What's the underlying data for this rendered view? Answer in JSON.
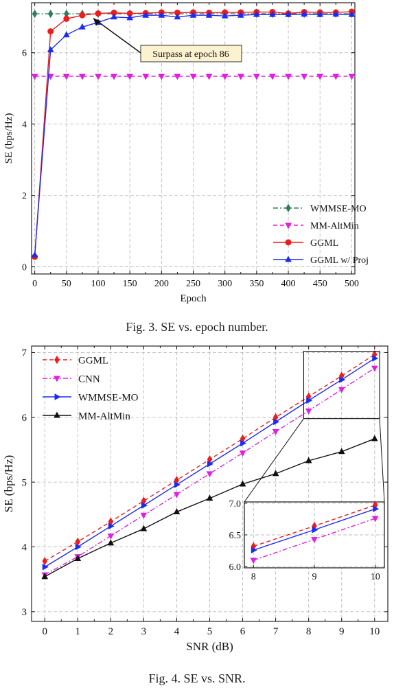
{
  "fig3": {
    "caption": "Fig. 3.  SE vs. epoch number.",
    "annotation": "Surpass at epoch 86"
  },
  "fig4": {
    "caption": "Fig. 4.  SE vs. SNR."
  },
  "chart_data": [
    {
      "type": "line",
      "title": "",
      "xlabel": "Epoch",
      "ylabel": "SE (bps/Hz)",
      "xlim": [
        -5,
        505
      ],
      "ylim": [
        -0.2,
        7.4
      ],
      "xticks": [
        0,
        50,
        100,
        150,
        200,
        250,
        300,
        350,
        400,
        450,
        500
      ],
      "yticks": [
        0,
        2,
        4,
        6
      ],
      "grid": true,
      "legend_position": "bottom-right",
      "annotation": {
        "text": "Surpass at epoch 86",
        "target_x": 86,
        "target_y": 7.08
      },
      "x": [
        0,
        25,
        50,
        75,
        100,
        125,
        150,
        175,
        200,
        225,
        250,
        275,
        300,
        325,
        350,
        375,
        400,
        425,
        450,
        475,
        500
      ],
      "series": [
        {
          "name": "WMMSE-MO",
          "color": "#2e7d5b",
          "marker": "diamond",
          "dash": "dashdot",
          "values": [
            7.09,
            7.09,
            7.09,
            7.09,
            7.09,
            7.09,
            7.09,
            7.09,
            7.09,
            7.09,
            7.09,
            7.09,
            7.09,
            7.09,
            7.09,
            7.09,
            7.09,
            7.09,
            7.09,
            7.09,
            7.09
          ]
        },
        {
          "name": "MM-AltMin",
          "color": "#e020e0",
          "marker": "triangle-down",
          "dash": "dash",
          "values": [
            5.34,
            5.34,
            5.34,
            5.34,
            5.34,
            5.34,
            5.34,
            5.34,
            5.34,
            5.34,
            5.34,
            5.34,
            5.34,
            5.34,
            5.34,
            5.34,
            5.34,
            5.34,
            5.34,
            5.34,
            5.34
          ]
        },
        {
          "name": "GGML",
          "color": "#ee1c1c",
          "marker": "circle",
          "dash": "solid",
          "values": [
            0.28,
            6.6,
            6.95,
            7.05,
            7.1,
            7.12,
            7.1,
            7.11,
            7.13,
            7.12,
            7.13,
            7.12,
            7.13,
            7.13,
            7.14,
            7.14,
            7.1,
            7.14,
            7.13,
            7.13,
            7.15
          ]
        },
        {
          "name": "GGML w/ Proj",
          "color": "#1c2cee",
          "marker": "triangle-up",
          "dash": "solid",
          "values": [
            0.33,
            6.08,
            6.5,
            6.72,
            6.85,
            7.0,
            6.98,
            7.05,
            7.05,
            7.0,
            7.05,
            7.05,
            7.03,
            7.05,
            7.07,
            7.07,
            7.07,
            7.08,
            7.07,
            7.08,
            7.07
          ]
        }
      ]
    },
    {
      "type": "line",
      "title": "",
      "xlabel": "SNR (dB)",
      "ylabel": "SE (bps/Hz)",
      "xlim": [
        -0.4,
        10.4
      ],
      "ylim": [
        2.85,
        7.1
      ],
      "xticks": [
        0,
        1,
        2,
        3,
        4,
        5,
        6,
        7,
        8,
        9,
        10
      ],
      "yticks": [
        3,
        4,
        5,
        6,
        7
      ],
      "grid": true,
      "legend_position": "top-left",
      "inset": {
        "xlim": [
          7.85,
          10.15
        ],
        "ylim": [
          5.98,
          7.02
        ],
        "xticks": [
          8,
          9,
          10
        ],
        "yticks": [
          6.0,
          6.5,
          7.0
        ]
      },
      "x": [
        0,
        1,
        2,
        3,
        4,
        5,
        6,
        7,
        8,
        9,
        10
      ],
      "series": [
        {
          "name": "GGML",
          "color": "#ee1c1c",
          "marker": "diamond",
          "dash": "dash",
          "values": [
            3.78,
            4.08,
            4.39,
            4.71,
            5.03,
            5.35,
            5.67,
            6.0,
            6.32,
            6.64,
            6.97
          ]
        },
        {
          "name": "CNN",
          "color": "#e020e0",
          "marker": "triangle-down",
          "dash": "dashdot",
          "values": [
            3.57,
            3.85,
            4.17,
            4.49,
            4.81,
            5.13,
            5.45,
            5.78,
            6.1,
            6.43,
            6.76
          ]
        },
        {
          "name": "WMMSE-MO",
          "color": "#1c2cee",
          "marker": "triangle-right",
          "dash": "solid",
          "values": [
            3.69,
            4.0,
            4.32,
            4.64,
            4.96,
            5.28,
            5.6,
            5.93,
            6.26,
            6.58,
            6.91
          ]
        },
        {
          "name": "MM-AltMin",
          "color": "#111111",
          "marker": "triangle-up",
          "dash": "solid",
          "values": [
            3.54,
            3.82,
            4.06,
            4.28,
            4.54,
            4.75,
            4.97,
            5.13,
            5.33,
            5.47,
            5.67
          ]
        }
      ]
    }
  ]
}
